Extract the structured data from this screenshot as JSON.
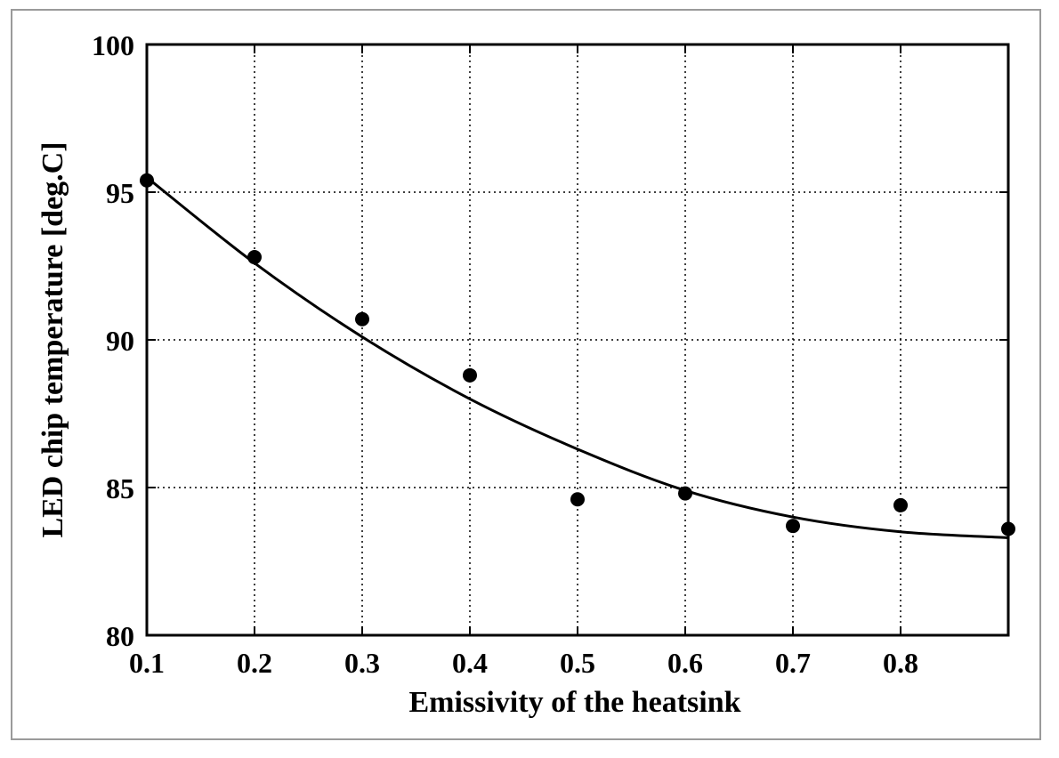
{
  "chart_data": {
    "type": "scatter",
    "xlabel": "Emissivity of the heatsink",
    "ylabel": "LED chip temperature [deg.C]",
    "xlim": [
      0.1,
      0.9
    ],
    "ylim": [
      80,
      100
    ],
    "x_ticks": [
      "0.1",
      "0.2",
      "0.3",
      "0.4",
      "0.5",
      "0.6",
      "0.7",
      "0.8"
    ],
    "y_ticks": [
      "80",
      "85",
      "90",
      "95",
      "100"
    ],
    "grid": true,
    "points": [
      {
        "x": 0.1,
        "y": 95.4
      },
      {
        "x": 0.2,
        "y": 92.8
      },
      {
        "x": 0.3,
        "y": 90.7
      },
      {
        "x": 0.4,
        "y": 88.8
      },
      {
        "x": 0.5,
        "y": 84.6
      },
      {
        "x": 0.6,
        "y": 84.8
      },
      {
        "x": 0.7,
        "y": 83.7
      },
      {
        "x": 0.8,
        "y": 84.4
      },
      {
        "x": 0.9,
        "y": 83.6
      }
    ],
    "fit_curve": [
      {
        "x": 0.1,
        "y": 95.5
      },
      {
        "x": 0.2,
        "y": 92.6
      },
      {
        "x": 0.3,
        "y": 90.1
      },
      {
        "x": 0.4,
        "y": 88.0
      },
      {
        "x": 0.5,
        "y": 86.3
      },
      {
        "x": 0.6,
        "y": 84.9
      },
      {
        "x": 0.7,
        "y": 84.0
      },
      {
        "x": 0.8,
        "y": 83.5
      },
      {
        "x": 0.9,
        "y": 83.3
      }
    ],
    "colors": {
      "axes": "#000000",
      "grid": "#000000",
      "markers": "#000000",
      "curve": "#000000",
      "frame": "#9a9a9a"
    }
  }
}
